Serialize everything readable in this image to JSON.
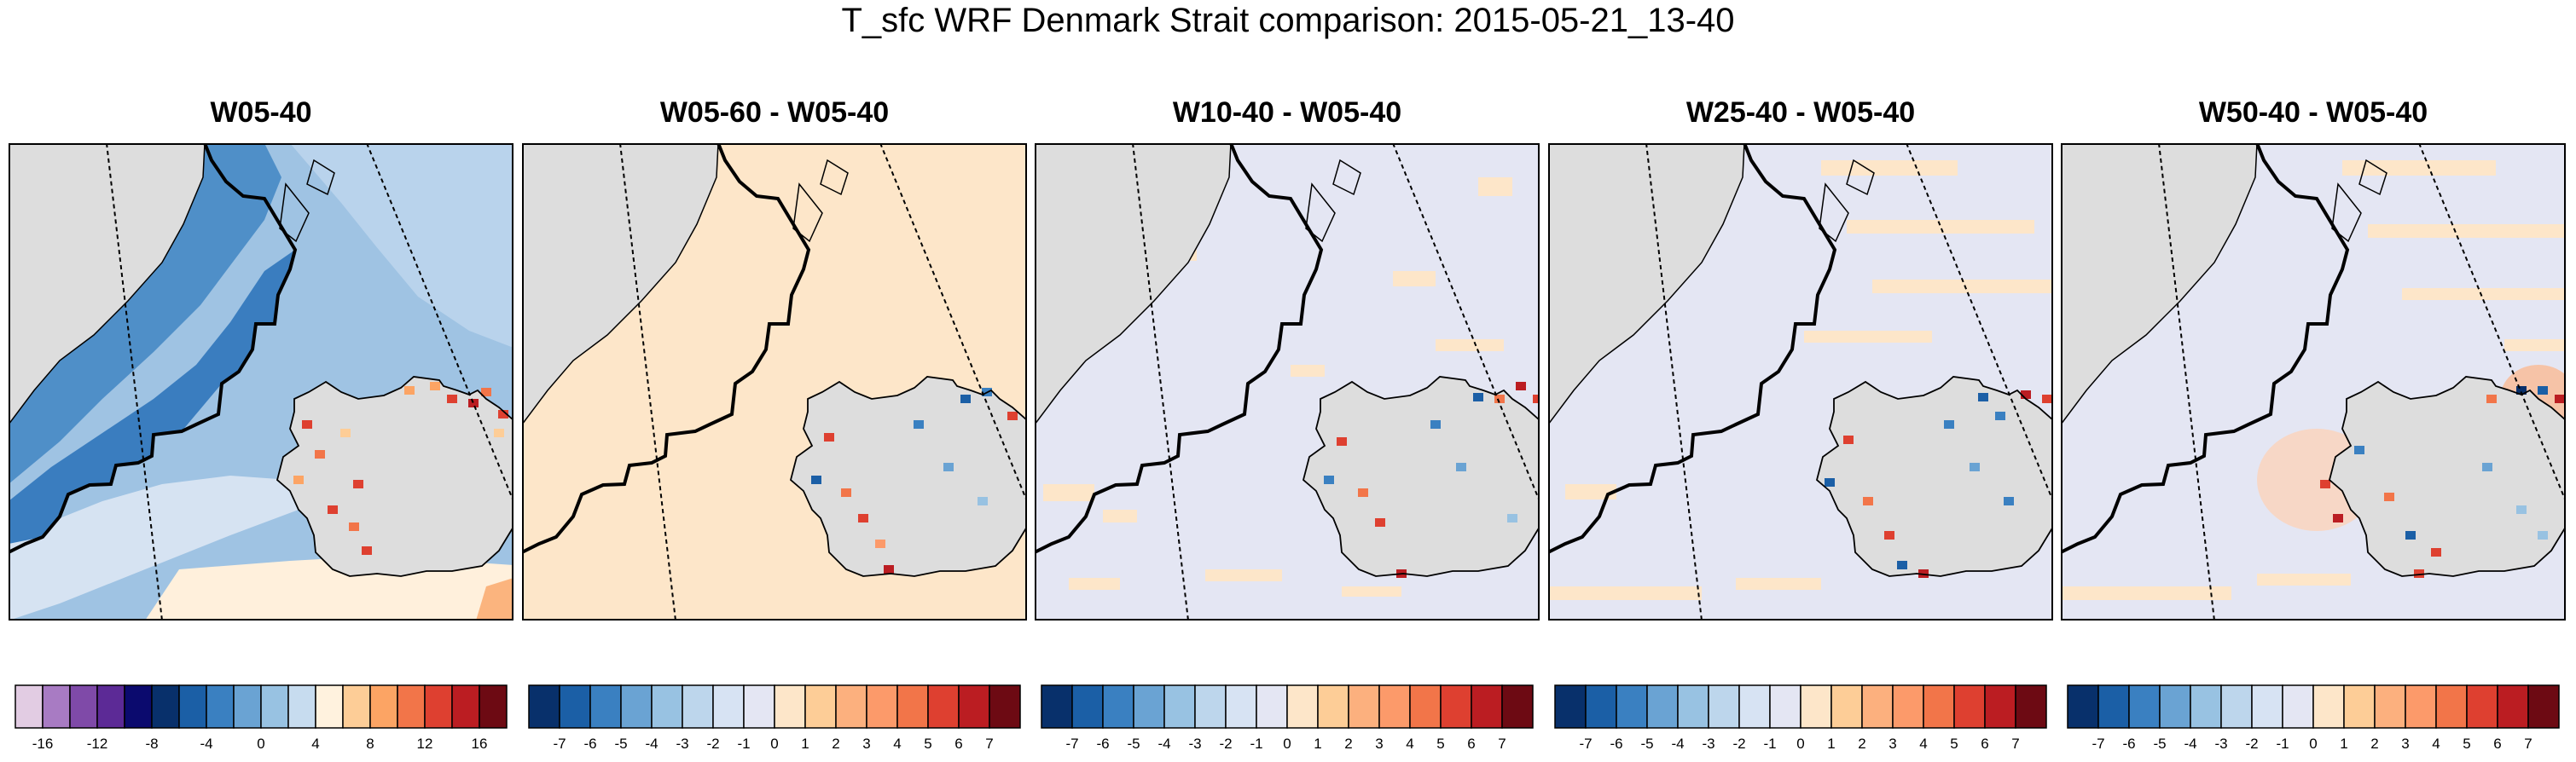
{
  "figure_title": "T_sfc WRF Denmark Strait comparison: 2015-05-21_13-40",
  "panels": [
    {
      "title": "W05-40",
      "kind": "absolute",
      "base_color": "#cddaee",
      "land_color": "#dddddd"
    },
    {
      "title": "W05-60 - W05-40",
      "kind": "diff",
      "base_color": "#fde6c9",
      "land_color": "#dddddd"
    },
    {
      "title": "W10-40 - W05-40",
      "kind": "diff",
      "base_color": "#e4e6f3",
      "land_color": "#dddddd"
    },
    {
      "title": "W25-40 - W05-40",
      "kind": "diff",
      "base_color": "#e4e6f3",
      "land_color": "#dddddd"
    },
    {
      "title": "W50-40 - W05-40",
      "kind": "diff",
      "base_color": "#e4e6f3",
      "land_color": "#dddddd"
    }
  ],
  "colorbars": [
    {
      "colors": [
        "#e2cce3",
        "#a87bc3",
        "#7f4aa8",
        "#5c2a96",
        "#0b0a6e",
        "#08306b",
        "#1b5fa6",
        "#3a80c1",
        "#6aa3d3",
        "#98c2e2",
        "#c7dcef",
        "#fff2de",
        "#fdcd97",
        "#fca464",
        "#f27549",
        "#de4030",
        "#bb1d22",
        "#6d0a13"
      ],
      "tick_labels": [
        "-16",
        "-12",
        "-8",
        "-4",
        "0",
        "4",
        "8",
        "12",
        "16"
      ],
      "tick_positions": [
        1,
        3,
        5,
        7,
        9,
        11,
        13,
        15,
        17
      ]
    },
    {
      "colors": [
        "#08306b",
        "#1b5fa6",
        "#3a80c1",
        "#6aa3d3",
        "#98c2e2",
        "#bdd6ec",
        "#d7e3f3",
        "#e4e6f3",
        "#fde6c9",
        "#fdcd97",
        "#fcb07e",
        "#fc9a6a",
        "#f27549",
        "#de4030",
        "#bb1d22",
        "#6d0a13"
      ],
      "tick_labels": [
        "-7",
        "-6",
        "-5",
        "-4",
        "-3",
        "-2",
        "-1",
        "0",
        "1",
        "2",
        "3",
        "4",
        "5",
        "6",
        "7"
      ],
      "tick_positions": [
        1,
        2,
        3,
        4,
        5,
        6,
        7,
        8,
        9,
        10,
        11,
        12,
        13,
        14,
        15
      ]
    },
    {
      "colors": [
        "#08306b",
        "#1b5fa6",
        "#3a80c1",
        "#6aa3d3",
        "#98c2e2",
        "#bdd6ec",
        "#d7e3f3",
        "#e4e6f3",
        "#fde6c9",
        "#fdcd97",
        "#fcb07e",
        "#fc9a6a",
        "#f27549",
        "#de4030",
        "#bb1d22",
        "#6d0a13"
      ],
      "tick_labels": [
        "-7",
        "-6",
        "-5",
        "-4",
        "-3",
        "-2",
        "-1",
        "0",
        "1",
        "2",
        "3",
        "4",
        "5",
        "6",
        "7"
      ],
      "tick_positions": [
        1,
        2,
        3,
        4,
        5,
        6,
        7,
        8,
        9,
        10,
        11,
        12,
        13,
        14,
        15
      ]
    },
    {
      "colors": [
        "#08306b",
        "#1b5fa6",
        "#3a80c1",
        "#6aa3d3",
        "#98c2e2",
        "#bdd6ec",
        "#d7e3f3",
        "#e4e6f3",
        "#fde6c9",
        "#fdcd97",
        "#fcb07e",
        "#fc9a6a",
        "#f27549",
        "#de4030",
        "#bb1d22",
        "#6d0a13"
      ],
      "tick_labels": [
        "-7",
        "-6",
        "-5",
        "-4",
        "-3",
        "-2",
        "-1",
        "0",
        "1",
        "2",
        "3",
        "4",
        "5",
        "6",
        "7"
      ],
      "tick_positions": [
        1,
        2,
        3,
        4,
        5,
        6,
        7,
        8,
        9,
        10,
        11,
        12,
        13,
        14,
        15
      ]
    },
    {
      "colors": [
        "#08306b",
        "#1b5fa6",
        "#3a80c1",
        "#6aa3d3",
        "#98c2e2",
        "#bdd6ec",
        "#d7e3f3",
        "#e4e6f3",
        "#fde6c9",
        "#fdcd97",
        "#fcb07e",
        "#fc9a6a",
        "#f27549",
        "#de4030",
        "#bb1d22",
        "#6d0a13"
      ],
      "tick_labels": [
        "-7",
        "-6",
        "-5",
        "-4",
        "-3",
        "-2",
        "-1",
        "0",
        "1",
        "2",
        "3",
        "4",
        "5",
        "6",
        "7"
      ],
      "tick_positions": [
        1,
        2,
        3,
        4,
        5,
        6,
        7,
        8,
        9,
        10,
        11,
        12,
        13,
        14,
        15
      ]
    }
  ]
}
